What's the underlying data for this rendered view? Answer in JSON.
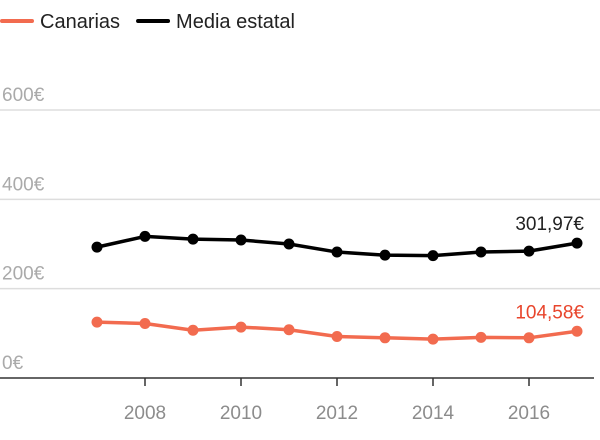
{
  "chart_data": {
    "type": "line",
    "x": [
      2007,
      2008,
      2009,
      2010,
      2011,
      2012,
      2013,
      2014,
      2015,
      2016,
      2017
    ],
    "series": [
      {
        "name": "Canarias",
        "color": "#f26b4f",
        "values": [
          125,
          122,
          107,
          114,
          108,
          93,
          90,
          87,
          91,
          90,
          104.58
        ],
        "end_label": "104,58€"
      },
      {
        "name": "Media estatal",
        "color": "#000000",
        "values": [
          293,
          317,
          311,
          309,
          300,
          282,
          275,
          274,
          282,
          284,
          301.97
        ],
        "end_label": "301,97€"
      }
    ],
    "y_ticks": [
      {
        "value": 0,
        "label": "0€"
      },
      {
        "value": 200,
        "label": "200€"
      },
      {
        "value": 400,
        "label": "400€"
      },
      {
        "value": 600,
        "label": "600€"
      }
    ],
    "x_ticks": [
      2008,
      2010,
      2012,
      2014,
      2016
    ],
    "ylim": [
      0,
      600
    ],
    "xlim": [
      2007,
      2017
    ],
    "grid": true,
    "legend_position": "top-left"
  }
}
